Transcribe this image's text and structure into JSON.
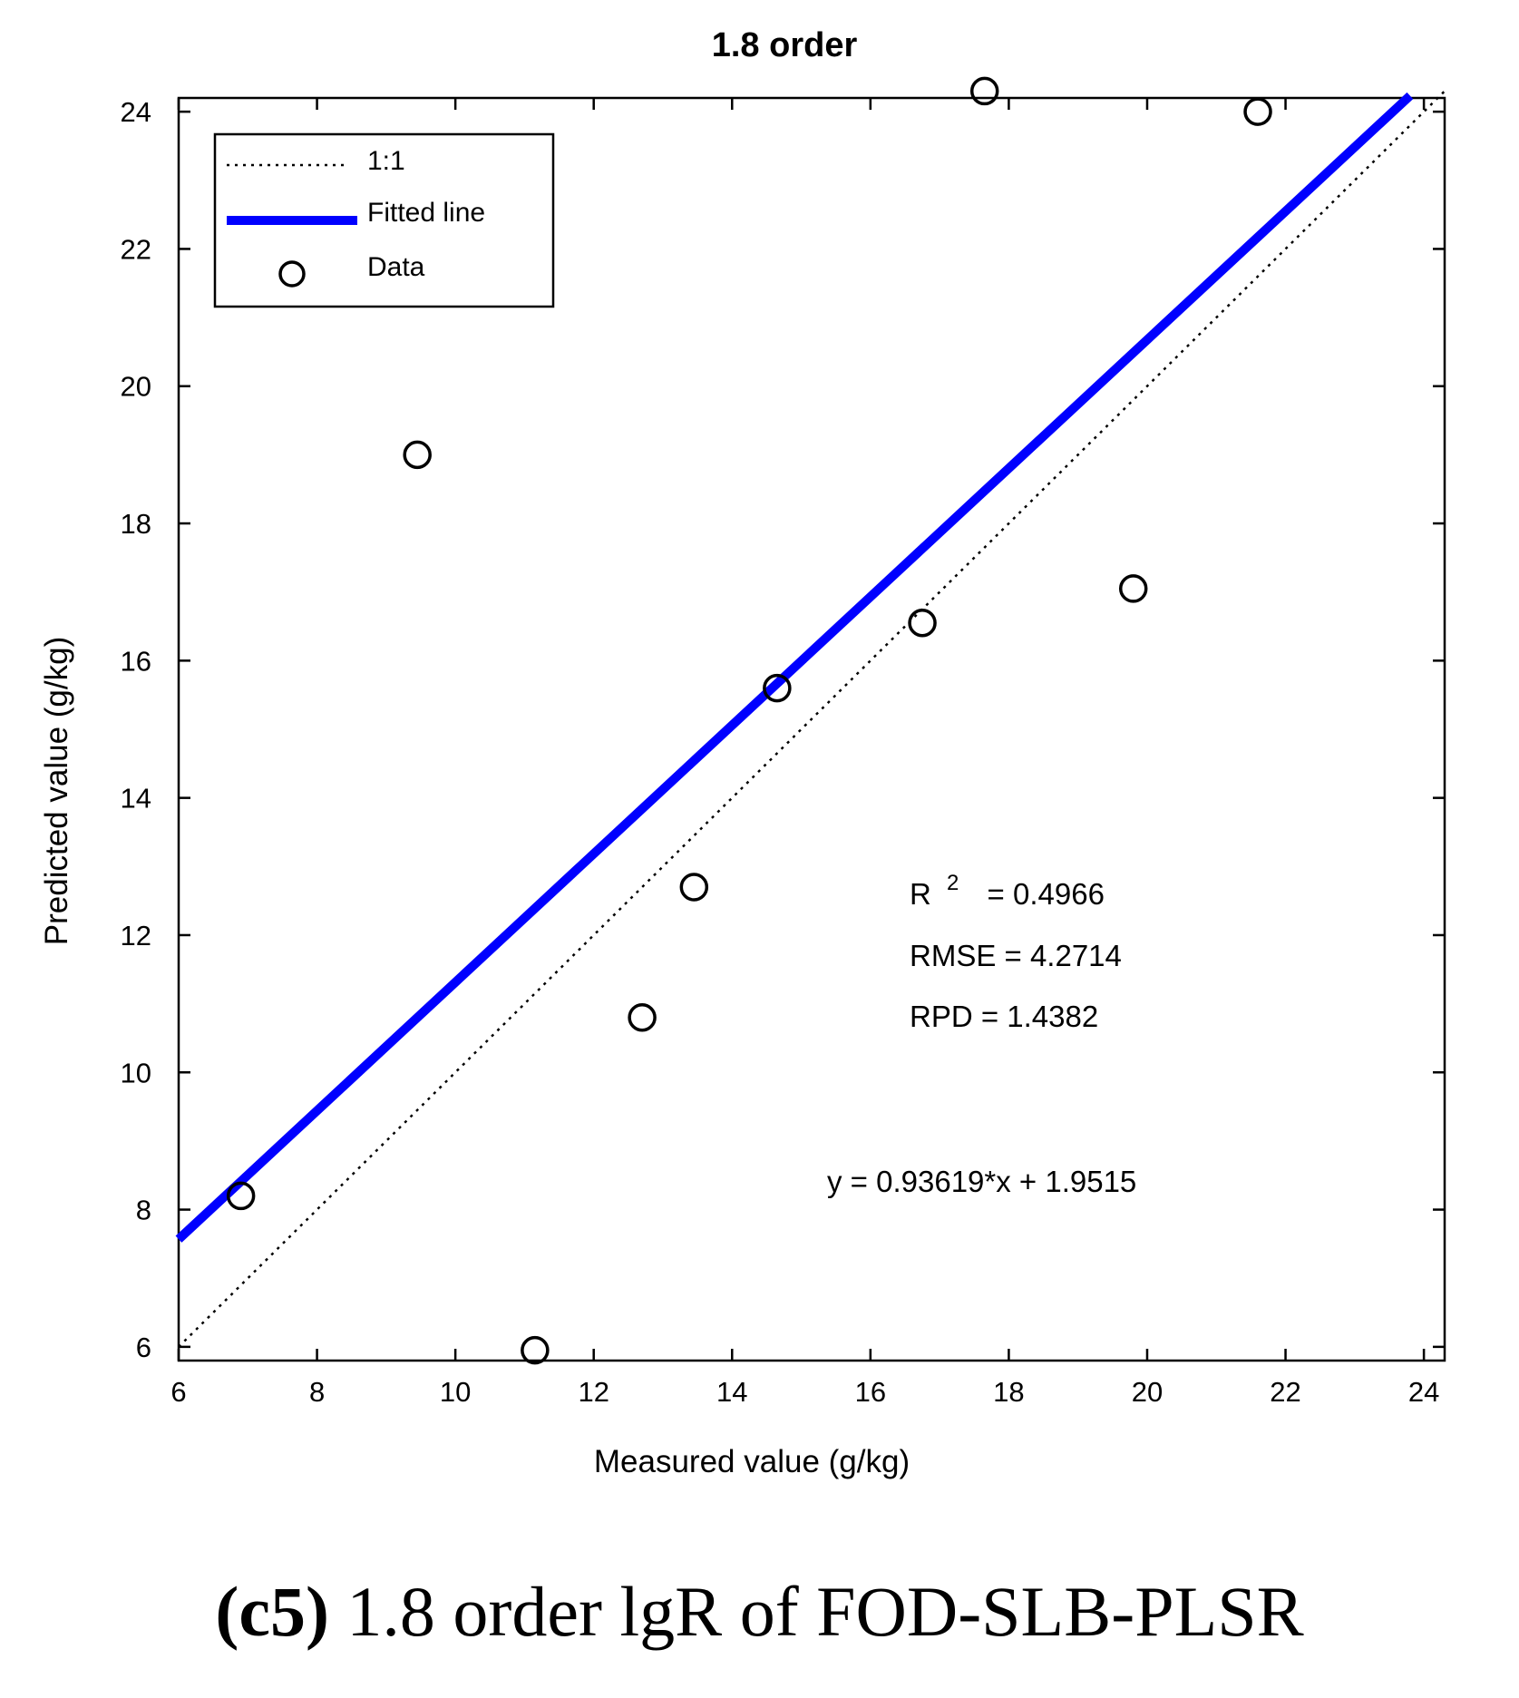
{
  "chart_data": {
    "type": "scatter",
    "title": "1.8 order",
    "xlabel": "Measured value (g/kg)",
    "ylabel": "Predicted value (g/kg)",
    "xlim": [
      6,
      24.3
    ],
    "ylim": [
      5.8,
      24.2
    ],
    "xticks": [
      6,
      8,
      10,
      12,
      14,
      16,
      18,
      20,
      22,
      24
    ],
    "yticks": [
      6,
      8,
      10,
      12,
      14,
      16,
      18,
      20,
      22,
      24
    ],
    "grid": false,
    "legend_position": "top-left",
    "legend": [
      {
        "label": "1:1",
        "style": "dotted"
      },
      {
        "label": "Fitted line",
        "style": "solid-blue"
      },
      {
        "label": "Data",
        "style": "circle-marker"
      }
    ],
    "series": [
      {
        "name": "Data",
        "kind": "scatter",
        "x": [
          6.9,
          9.45,
          11.15,
          12.7,
          13.45,
          14.65,
          16.75,
          17.65,
          19.8,
          21.6
        ],
        "y": [
          8.2,
          19.0,
          5.95,
          10.8,
          12.7,
          15.6,
          16.55,
          24.3,
          17.05,
          24.0
        ]
      },
      {
        "name": "Fitted line",
        "kind": "line",
        "slope": 0.93619,
        "intercept": 1.9515,
        "x_range": [
          6,
          23.8
        ]
      },
      {
        "name": "1:1",
        "kind": "line",
        "slope": 1,
        "intercept": 0,
        "x_range": [
          6,
          24.3
        ]
      }
    ],
    "annotations": {
      "r2_label": "R",
      "r2_sup": "2",
      "r2_value": "=  0.4966",
      "rmse": "RMSE = 4.2714",
      "rpd": "RPD  = 1.4382",
      "equation": "y = 0.93619*x + 1.9515"
    },
    "colors": {
      "fitted_line": "#0000ff",
      "axes": "#000000",
      "markers": "#000000"
    }
  },
  "caption": {
    "label": "(c5)",
    "text": " 1.8 order lgR of FOD-SLB-PLSR"
  }
}
